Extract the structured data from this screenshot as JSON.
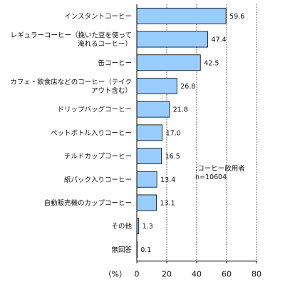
{
  "chart_data": {
    "type": "bar",
    "orientation": "horizontal",
    "categories": [
      [
        "インスタントコーヒー"
      ],
      [
        "レギュラーコーヒー（挽いた豆を使って",
        "淹れるコーヒー）"
      ],
      [
        "缶コーヒー"
      ],
      [
        "カフェ・飲食店などのコーヒー（テイク",
        "アウト含む）"
      ],
      [
        "ドリップバッグコーヒー"
      ],
      [
        "ペットボトル入りコーヒー"
      ],
      [
        "チルドカップコーヒー"
      ],
      [
        "紙パック入りコーヒー"
      ],
      [
        "自動販売機のカップコーヒー"
      ],
      [
        "その他"
      ],
      [
        "無回答"
      ]
    ],
    "values": [
      59.6,
      47.4,
      42.5,
      26.8,
      21.8,
      17.0,
      16.5,
      13.4,
      13.1,
      1.3,
      0.1
    ],
    "value_labels": [
      "59.6",
      "47.4",
      "42.5",
      "26.8",
      "21.8",
      "17.0",
      "16.5",
      "13.4",
      "13.1",
      "1.3",
      "0.1"
    ],
    "xlim": [
      0,
      80
    ],
    "x_ticks": [
      "0",
      "20",
      "40",
      "60",
      "80"
    ],
    "unit_label": "（%）",
    "legend": [
      ":コーヒー飲用者",
      "n=10604"
    ],
    "grid": "vertical-dotted",
    "bar_color": "#99ccff",
    "bar_edge_color": "#000000"
  }
}
